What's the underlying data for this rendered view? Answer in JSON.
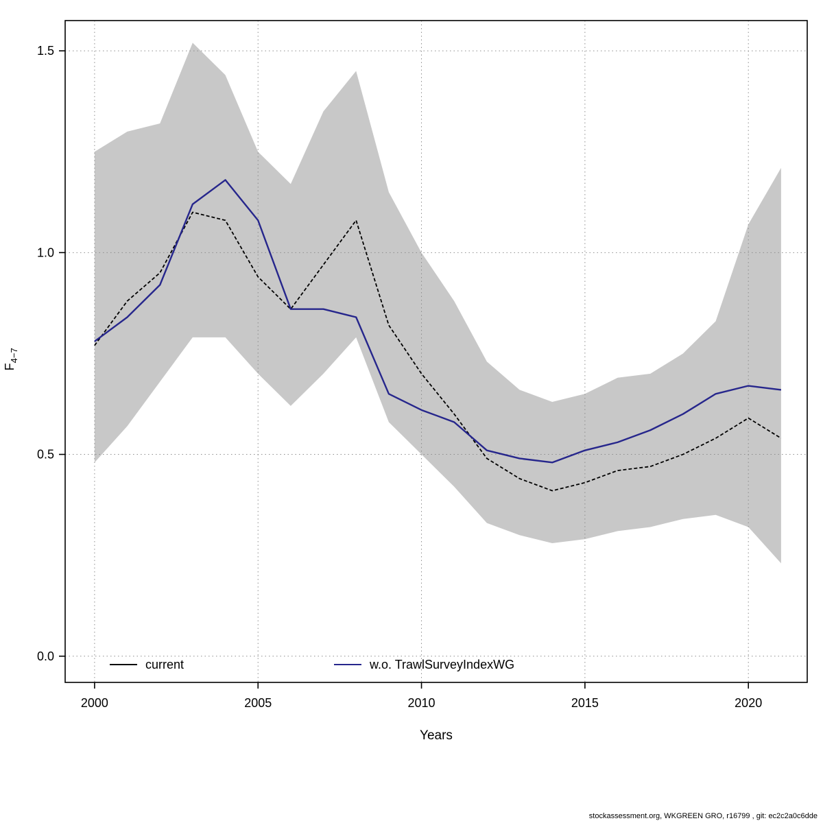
{
  "footer": {
    "credit": "stockassessment.org, WKGREEN GRO, r16799 , git: ec2c2a0c6dde"
  },
  "chart_data": {
    "type": "line",
    "title": "",
    "xlabel": "Years",
    "ylabel_base": "F",
    "ylabel_sub": "4−7",
    "xlim": [
      1999.1,
      2021.8
    ],
    "ylim": [
      -0.065,
      1.575
    ],
    "x_ticks": [
      2000,
      2005,
      2010,
      2015,
      2020
    ],
    "x_tick_labels": [
      "2000",
      "2005",
      "2010",
      "2015",
      "2020"
    ],
    "y_ticks": [
      0.0,
      0.5,
      1.0,
      1.5
    ],
    "y_tick_labels": [
      "0.0",
      "0.5",
      "1.0",
      "1.5"
    ],
    "grid": true,
    "legend_position": "bottom-inside",
    "years": [
      2000,
      2001,
      2002,
      2003,
      2004,
      2005,
      2006,
      2007,
      2008,
      2009,
      2010,
      2011,
      2012,
      2013,
      2014,
      2015,
      2016,
      2017,
      2018,
      2019,
      2020,
      2021
    ],
    "series": [
      {
        "name": "current",
        "color": "#000000",
        "style": "dashed",
        "values": [
          0.77,
          0.88,
          0.95,
          1.1,
          1.08,
          0.94,
          0.86,
          0.97,
          1.08,
          0.82,
          0.7,
          0.6,
          0.49,
          0.44,
          0.41,
          0.43,
          0.46,
          0.47,
          0.5,
          0.54,
          0.59,
          0.54
        ]
      },
      {
        "name": "w.o. TrawlSurveyIndexWG",
        "color": "#26268c",
        "style": "solid",
        "values": [
          0.78,
          0.84,
          0.92,
          1.12,
          1.18,
          1.08,
          0.86,
          0.86,
          0.84,
          0.65,
          0.61,
          0.58,
          0.51,
          0.49,
          0.48,
          0.51,
          0.53,
          0.56,
          0.6,
          0.65,
          0.67,
          0.66
        ]
      }
    ],
    "band": {
      "series": "current",
      "color": "#c8c8c8",
      "upper": [
        1.25,
        1.3,
        1.32,
        1.52,
        1.44,
        1.25,
        1.17,
        1.35,
        1.45,
        1.15,
        1.0,
        0.88,
        0.73,
        0.66,
        0.63,
        0.65,
        0.69,
        0.7,
        0.75,
        0.83,
        1.07,
        1.21
      ],
      "lower": [
        0.48,
        0.57,
        0.68,
        0.79,
        0.79,
        0.7,
        0.62,
        0.7,
        0.79,
        0.58,
        0.5,
        0.42,
        0.33,
        0.3,
        0.28,
        0.29,
        0.31,
        0.32,
        0.34,
        0.35,
        0.32,
        0.23
      ]
    }
  }
}
